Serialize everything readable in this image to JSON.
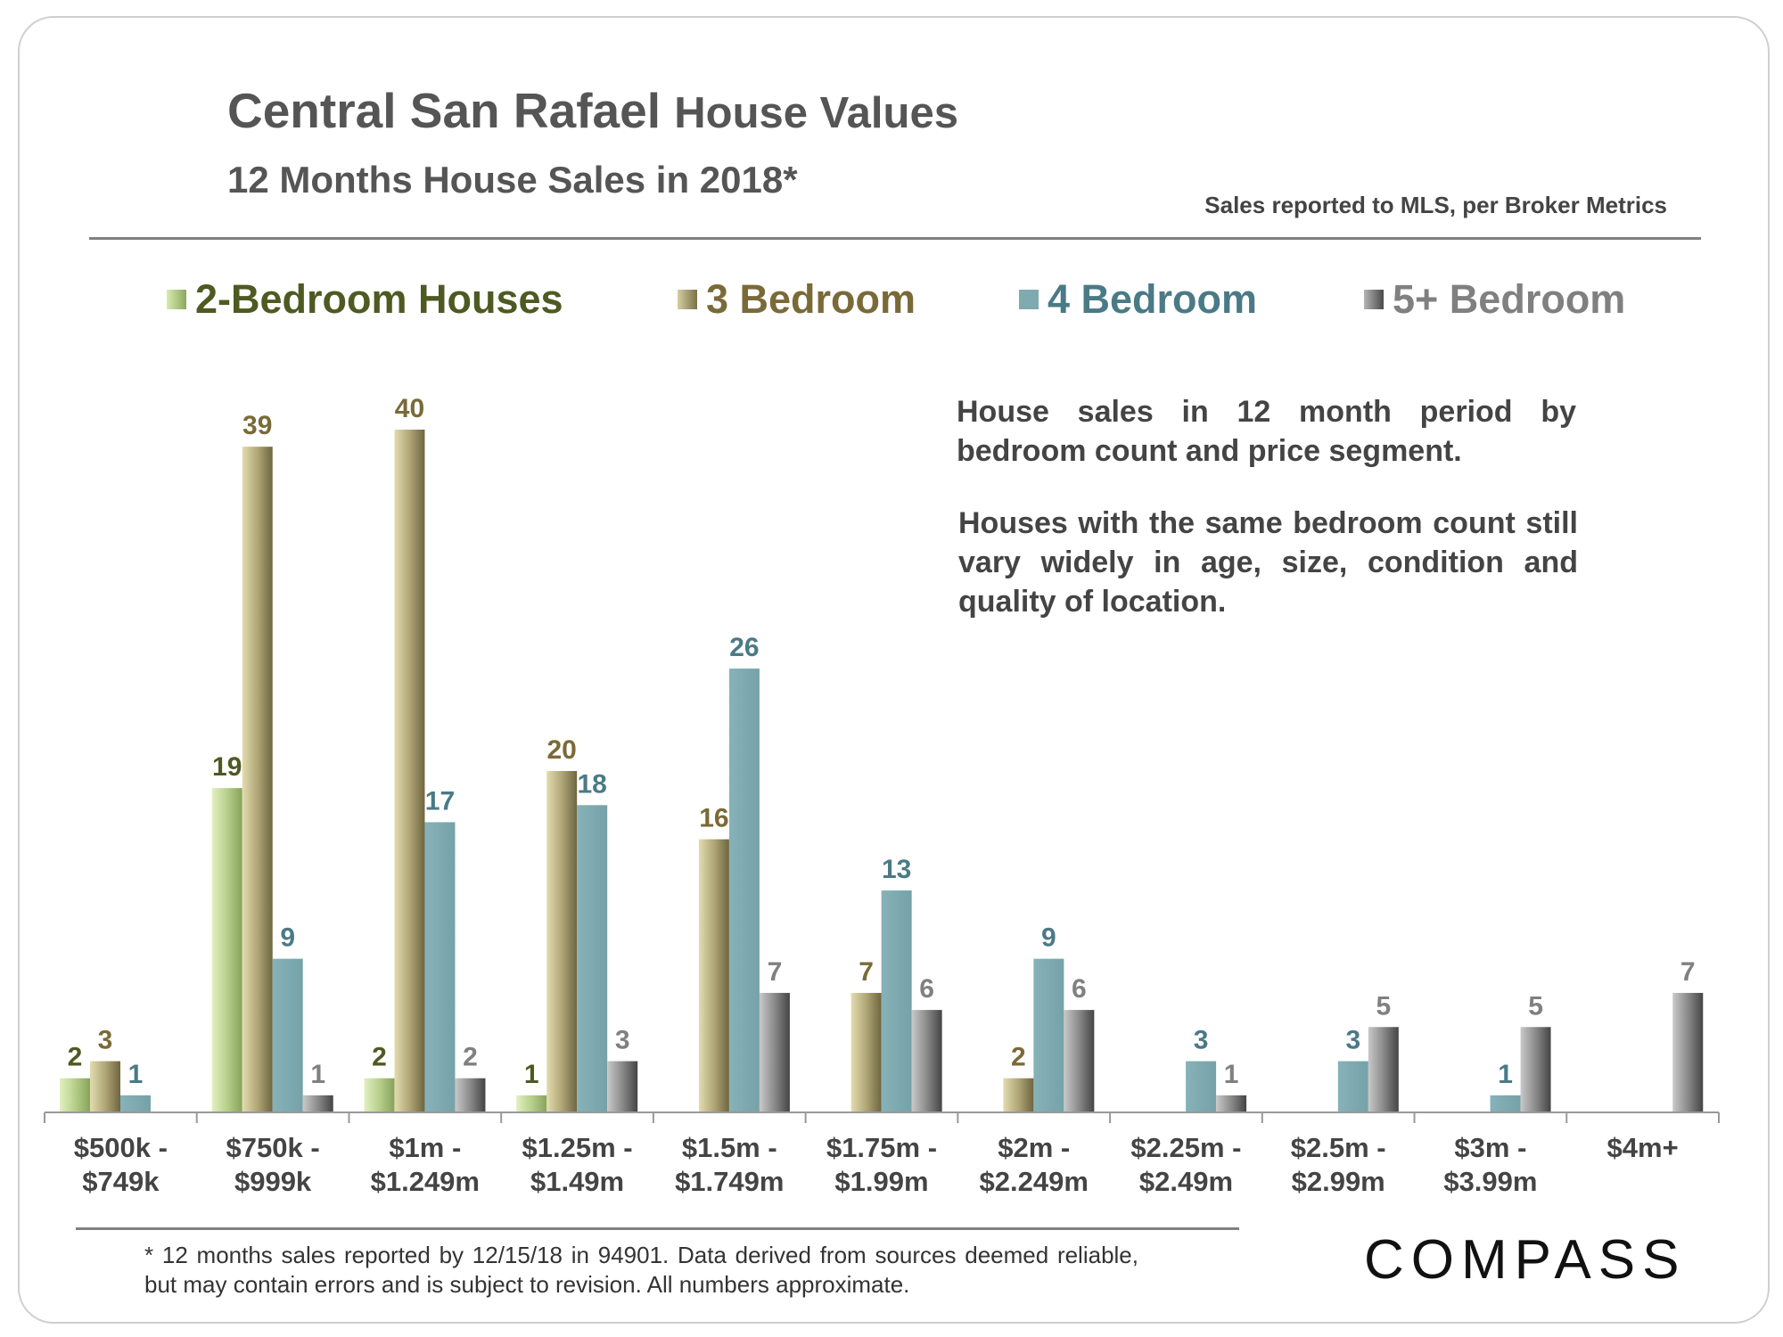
{
  "header": {
    "title_bold": "Central San Rafael",
    "title_rest": "House Values",
    "subtitle": "12 Months House Sales in 2018*",
    "source": "Sales reported to MLS, per Broker Metrics"
  },
  "notes": {
    "p1": "House sales in 12 month period by bedroom count and price segment.",
    "p2": "Houses with the same bedroom count still vary widely in age, size, condition and quality of location."
  },
  "footnote": "* 12 months sales reported by 12/15/18 in 94901. Data derived from sources deemed reliable, but may contain errors and is subject to revision. All numbers approximate.",
  "logo": "COMPASS",
  "colors": {
    "two_bed": "#a8c07e",
    "three_bed": "#a39a6c",
    "four_bed": "#7eaab0",
    "five_bed": "#7a7a7a",
    "two_bed_text": "#4d5a22",
    "three_bed_text": "#7a6a38",
    "four_bed_text": "#4a7a86",
    "five_bed_text": "#808080"
  },
  "chart_data": {
    "type": "bar",
    "categories": [
      "$500k -\n$749k",
      "$750k -\n$999k",
      "$1m -\n$1.249m",
      "$1.25m -\n$1.49m",
      "$1.5m -\n$1.749m",
      "$1.75m -\n$1.99m",
      "$2m -\n$2.249m",
      "$2.25m -\n$2.49m",
      "$2.5m -\n$2.99m",
      "$3m -\n$3.99m",
      "$4m+"
    ],
    "series": [
      {
        "name": "2-Bedroom Houses",
        "values": [
          2,
          19,
          2,
          1,
          null,
          null,
          null,
          null,
          null,
          null,
          null
        ]
      },
      {
        "name": "3 Bedroom",
        "values": [
          3,
          39,
          40,
          20,
          16,
          7,
          2,
          null,
          null,
          null,
          null
        ]
      },
      {
        "name": "4 Bedroom",
        "values": [
          1,
          9,
          17,
          18,
          26,
          13,
          9,
          3,
          3,
          1,
          null
        ]
      },
      {
        "name": "5+ Bedroom",
        "values": [
          null,
          1,
          2,
          3,
          7,
          6,
          6,
          1,
          5,
          5,
          7
        ]
      }
    ],
    "ylim": [
      0,
      40
    ],
    "grid": false,
    "legend": "top",
    "data_labels": true
  }
}
